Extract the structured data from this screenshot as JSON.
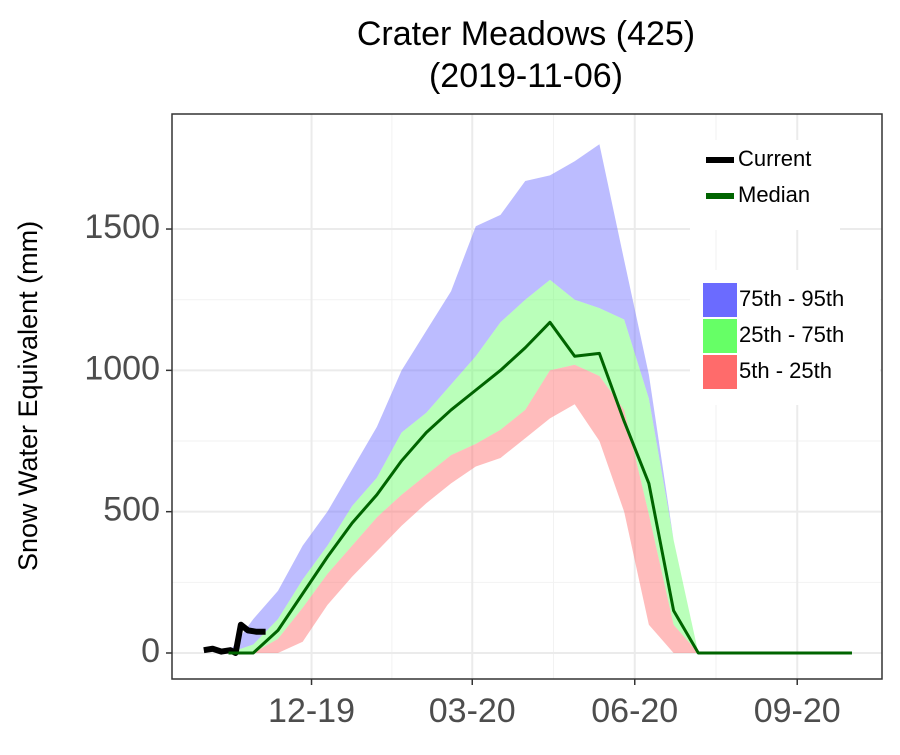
{
  "chart_data": {
    "type": "band-line",
    "title": [
      "Crater Meadows (425)",
      "(2019-11-06)"
    ],
    "y_label": "Snow Water Equivalent (mm)",
    "xlim": [
      -18,
      384
    ],
    "ylim": [
      -92,
      1907
    ],
    "xticks": [
      {
        "value": 61,
        "label": "12-19"
      },
      {
        "value": 152,
        "label": "03-20"
      },
      {
        "value": 244,
        "label": "06-20"
      },
      {
        "value": 336,
        "label": "09-20"
      }
    ],
    "yticks": [
      0,
      500,
      1000,
      1500
    ],
    "grid": true,
    "x": [
      14,
      28,
      42,
      56,
      70,
      84,
      98,
      112,
      126,
      140,
      154,
      168,
      182,
      196,
      210,
      224,
      238,
      252,
      266,
      280,
      294,
      320,
      345,
      367
    ],
    "bands": [
      {
        "name": "75th - 95th",
        "color": "#6b6bff",
        "lower": [
          0,
          30,
          120,
          260,
          380,
          520,
          620,
          780,
          850,
          950,
          1050,
          1170,
          1250,
          1320,
          1250,
          1220,
          1180,
          900,
          400,
          0,
          0,
          0,
          0,
          0
        ],
        "upper": [
          0,
          120,
          220,
          380,
          500,
          650,
          800,
          1000,
          1140,
          1280,
          1510,
          1550,
          1670,
          1690,
          1740,
          1800,
          1390,
          985,
          400,
          0,
          0,
          0,
          0,
          0
        ]
      },
      {
        "name": "25th - 75th",
        "color": "#66ff66",
        "lower": [
          0,
          0,
          50,
          160,
          280,
          380,
          480,
          560,
          630,
          700,
          740,
          790,
          860,
          1000,
          1020,
          980,
          860,
          490,
          100,
          0,
          0,
          0,
          0,
          0
        ],
        "upper": [
          0,
          30,
          120,
          260,
          380,
          520,
          620,
          780,
          850,
          950,
          1050,
          1170,
          1250,
          1320,
          1250,
          1220,
          1180,
          900,
          400,
          0,
          0,
          0,
          0,
          0
        ]
      },
      {
        "name": "5th - 25th",
        "color": "#ff6b6b",
        "lower": [
          0,
          0,
          0,
          40,
          170,
          270,
          360,
          450,
          530,
          600,
          660,
          690,
          760,
          830,
          880,
          750,
          500,
          100,
          0,
          0,
          0,
          0,
          0,
          0
        ],
        "upper": [
          0,
          0,
          50,
          160,
          280,
          380,
          480,
          560,
          630,
          700,
          740,
          790,
          860,
          1000,
          1020,
          980,
          860,
          490,
          100,
          0,
          0,
          0,
          0,
          0
        ]
      }
    ],
    "series": [
      {
        "name": "Current",
        "color": "#000000",
        "x": [
          0,
          5,
          10,
          15,
          18,
          21,
          25,
          30,
          35
        ],
        "values": [
          10,
          15,
          5,
          10,
          0,
          100,
          80,
          75,
          75
        ]
      },
      {
        "name": "Median",
        "color": "#006400",
        "values": [
          0,
          0,
          80,
          210,
          340,
          460,
          560,
          680,
          780,
          860,
          930,
          1000,
          1080,
          1170,
          1050,
          1060,
          820,
          600,
          150,
          0,
          0,
          0,
          0,
          0
        ]
      }
    ]
  }
}
